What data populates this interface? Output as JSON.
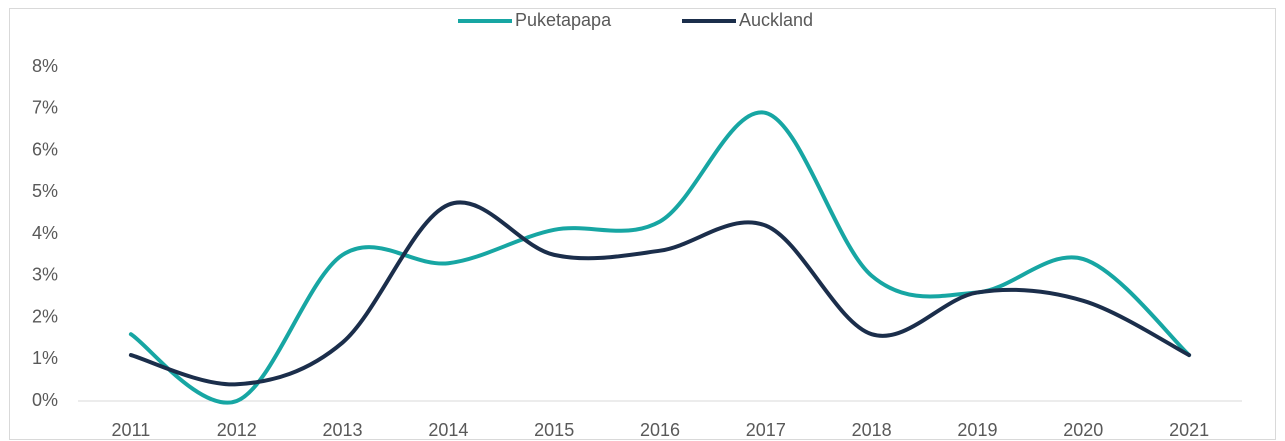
{
  "chart_data": {
    "type": "line",
    "categories": [
      "2011",
      "2012",
      "2013",
      "2014",
      "2015",
      "2016",
      "2017",
      "2018",
      "2019",
      "2020",
      "2021"
    ],
    "series": [
      {
        "name": "Puketapapa",
        "color": "#17a6a3",
        "values": [
          1.6,
          0.0,
          3.5,
          3.3,
          4.1,
          4.3,
          6.9,
          3.0,
          2.6,
          3.4,
          1.1
        ]
      },
      {
        "name": "Auckland",
        "color": "#1b2e4b",
        "values": [
          1.1,
          0.4,
          1.4,
          4.7,
          3.5,
          3.6,
          4.2,
          1.6,
          2.6,
          2.4,
          1.1
        ]
      }
    ],
    "ylim": [
      0,
      8
    ],
    "yticks": [
      {
        "value": 0,
        "label": "0%"
      },
      {
        "value": 1,
        "label": "1%"
      },
      {
        "value": 2,
        "label": "2%"
      },
      {
        "value": 3,
        "label": "3%"
      },
      {
        "value": 4,
        "label": "4%"
      },
      {
        "value": 5,
        "label": "5%"
      },
      {
        "value": 6,
        "label": "6%"
      },
      {
        "value": 7,
        "label": "7%"
      },
      {
        "value": 8,
        "label": "8%"
      }
    ],
    "legend": "top",
    "smooth": true
  }
}
